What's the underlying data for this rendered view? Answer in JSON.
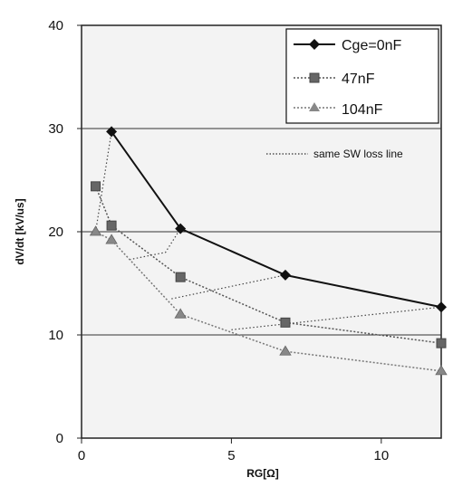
{
  "chart_data": {
    "type": "line",
    "xlabel": "RG[Ω]",
    "ylabel": "dV/dt [kV/us]",
    "xlim": [
      0,
      12
    ],
    "ylim": [
      0,
      40
    ],
    "xticks": [
      0,
      5,
      10
    ],
    "yticks": [
      0,
      10,
      20,
      30,
      40
    ],
    "series": [
      {
        "name": "Cge=0nF",
        "marker": "diamond",
        "color": "#111111",
        "x": [
          1,
          3.3,
          6.8,
          12
        ],
        "y": [
          29.7,
          20.3,
          15.8,
          12.7
        ]
      },
      {
        "name": "47nF",
        "marker": "square",
        "color": "#555555",
        "x": [
          0.47,
          1,
          3.3,
          6.8,
          12
        ],
        "y": [
          24.4,
          20.6,
          15.6,
          11.2,
          9.2
        ]
      },
      {
        "name": "104nF",
        "marker": "triangle",
        "color": "#777777",
        "x": [
          0.47,
          1,
          3.3,
          6.8,
          12
        ],
        "y": [
          20.0,
          19.2,
          12.0,
          8.4,
          6.5
        ]
      }
    ],
    "dotted_lines": [
      {
        "x": [
          0.47,
          1
        ],
        "y": [
          20.0,
          29.7
        ]
      },
      {
        "x": [
          1.6,
          2.8,
          3.3
        ],
        "y": [
          17.3,
          18.0,
          20.3
        ]
      },
      {
        "x": [
          3.0,
          6.8
        ],
        "y": [
          13.5,
          15.8
        ]
      },
      {
        "x": [
          5.0,
          12
        ],
        "y": [
          10.5,
          12.7
        ]
      }
    ],
    "legend": {
      "position": "top-right",
      "note": "same SW loss line"
    }
  }
}
